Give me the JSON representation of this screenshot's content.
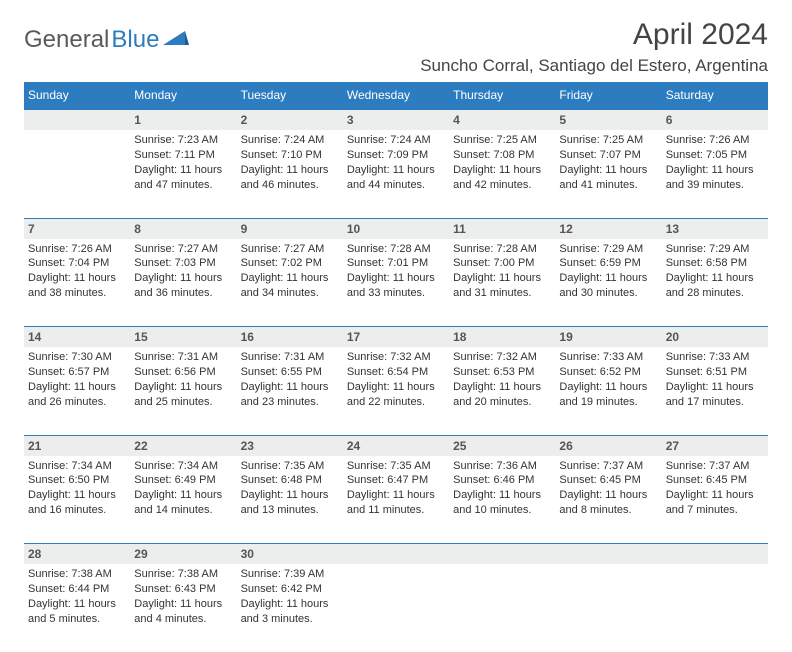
{
  "logo": {
    "text_gray": "General",
    "text_blue": "Blue"
  },
  "title": "April 2024",
  "location": "Suncho Corral, Santiago del Estero, Argentina",
  "colors": {
    "header_bg": "#2e7cc0",
    "header_text": "#ffffff",
    "daynum_bg": "#eceded",
    "divider": "#2e7cc0",
    "body_text": "#333333"
  },
  "weekdays": [
    "Sunday",
    "Monday",
    "Tuesday",
    "Wednesday",
    "Thursday",
    "Friday",
    "Saturday"
  ],
  "weeks": [
    {
      "nums": [
        "",
        "1",
        "2",
        "3",
        "4",
        "5",
        "6"
      ],
      "cells": [
        null,
        {
          "sr": "Sunrise: 7:23 AM",
          "ss": "Sunset: 7:11 PM",
          "d1": "Daylight: 11 hours",
          "d2": "and 47 minutes."
        },
        {
          "sr": "Sunrise: 7:24 AM",
          "ss": "Sunset: 7:10 PM",
          "d1": "Daylight: 11 hours",
          "d2": "and 46 minutes."
        },
        {
          "sr": "Sunrise: 7:24 AM",
          "ss": "Sunset: 7:09 PM",
          "d1": "Daylight: 11 hours",
          "d2": "and 44 minutes."
        },
        {
          "sr": "Sunrise: 7:25 AM",
          "ss": "Sunset: 7:08 PM",
          "d1": "Daylight: 11 hours",
          "d2": "and 42 minutes."
        },
        {
          "sr": "Sunrise: 7:25 AM",
          "ss": "Sunset: 7:07 PM",
          "d1": "Daylight: 11 hours",
          "d2": "and 41 minutes."
        },
        {
          "sr": "Sunrise: 7:26 AM",
          "ss": "Sunset: 7:05 PM",
          "d1": "Daylight: 11 hours",
          "d2": "and 39 minutes."
        }
      ]
    },
    {
      "nums": [
        "7",
        "8",
        "9",
        "10",
        "11",
        "12",
        "13"
      ],
      "cells": [
        {
          "sr": "Sunrise: 7:26 AM",
          "ss": "Sunset: 7:04 PM",
          "d1": "Daylight: 11 hours",
          "d2": "and 38 minutes."
        },
        {
          "sr": "Sunrise: 7:27 AM",
          "ss": "Sunset: 7:03 PM",
          "d1": "Daylight: 11 hours",
          "d2": "and 36 minutes."
        },
        {
          "sr": "Sunrise: 7:27 AM",
          "ss": "Sunset: 7:02 PM",
          "d1": "Daylight: 11 hours",
          "d2": "and 34 minutes."
        },
        {
          "sr": "Sunrise: 7:28 AM",
          "ss": "Sunset: 7:01 PM",
          "d1": "Daylight: 11 hours",
          "d2": "and 33 minutes."
        },
        {
          "sr": "Sunrise: 7:28 AM",
          "ss": "Sunset: 7:00 PM",
          "d1": "Daylight: 11 hours",
          "d2": "and 31 minutes."
        },
        {
          "sr": "Sunrise: 7:29 AM",
          "ss": "Sunset: 6:59 PM",
          "d1": "Daylight: 11 hours",
          "d2": "and 30 minutes."
        },
        {
          "sr": "Sunrise: 7:29 AM",
          "ss": "Sunset: 6:58 PM",
          "d1": "Daylight: 11 hours",
          "d2": "and 28 minutes."
        }
      ]
    },
    {
      "nums": [
        "14",
        "15",
        "16",
        "17",
        "18",
        "19",
        "20"
      ],
      "cells": [
        {
          "sr": "Sunrise: 7:30 AM",
          "ss": "Sunset: 6:57 PM",
          "d1": "Daylight: 11 hours",
          "d2": "and 26 minutes."
        },
        {
          "sr": "Sunrise: 7:31 AM",
          "ss": "Sunset: 6:56 PM",
          "d1": "Daylight: 11 hours",
          "d2": "and 25 minutes."
        },
        {
          "sr": "Sunrise: 7:31 AM",
          "ss": "Sunset: 6:55 PM",
          "d1": "Daylight: 11 hours",
          "d2": "and 23 minutes."
        },
        {
          "sr": "Sunrise: 7:32 AM",
          "ss": "Sunset: 6:54 PM",
          "d1": "Daylight: 11 hours",
          "d2": "and 22 minutes."
        },
        {
          "sr": "Sunrise: 7:32 AM",
          "ss": "Sunset: 6:53 PM",
          "d1": "Daylight: 11 hours",
          "d2": "and 20 minutes."
        },
        {
          "sr": "Sunrise: 7:33 AM",
          "ss": "Sunset: 6:52 PM",
          "d1": "Daylight: 11 hours",
          "d2": "and 19 minutes."
        },
        {
          "sr": "Sunrise: 7:33 AM",
          "ss": "Sunset: 6:51 PM",
          "d1": "Daylight: 11 hours",
          "d2": "and 17 minutes."
        }
      ]
    },
    {
      "nums": [
        "21",
        "22",
        "23",
        "24",
        "25",
        "26",
        "27"
      ],
      "cells": [
        {
          "sr": "Sunrise: 7:34 AM",
          "ss": "Sunset: 6:50 PM",
          "d1": "Daylight: 11 hours",
          "d2": "and 16 minutes."
        },
        {
          "sr": "Sunrise: 7:34 AM",
          "ss": "Sunset: 6:49 PM",
          "d1": "Daylight: 11 hours",
          "d2": "and 14 minutes."
        },
        {
          "sr": "Sunrise: 7:35 AM",
          "ss": "Sunset: 6:48 PM",
          "d1": "Daylight: 11 hours",
          "d2": "and 13 minutes."
        },
        {
          "sr": "Sunrise: 7:35 AM",
          "ss": "Sunset: 6:47 PM",
          "d1": "Daylight: 11 hours",
          "d2": "and 11 minutes."
        },
        {
          "sr": "Sunrise: 7:36 AM",
          "ss": "Sunset: 6:46 PM",
          "d1": "Daylight: 11 hours",
          "d2": "and 10 minutes."
        },
        {
          "sr": "Sunrise: 7:37 AM",
          "ss": "Sunset: 6:45 PM",
          "d1": "Daylight: 11 hours",
          "d2": "and 8 minutes."
        },
        {
          "sr": "Sunrise: 7:37 AM",
          "ss": "Sunset: 6:45 PM",
          "d1": "Daylight: 11 hours",
          "d2": "and 7 minutes."
        }
      ]
    },
    {
      "nums": [
        "28",
        "29",
        "30",
        "",
        "",
        "",
        ""
      ],
      "cells": [
        {
          "sr": "Sunrise: 7:38 AM",
          "ss": "Sunset: 6:44 PM",
          "d1": "Daylight: 11 hours",
          "d2": "and 5 minutes."
        },
        {
          "sr": "Sunrise: 7:38 AM",
          "ss": "Sunset: 6:43 PM",
          "d1": "Daylight: 11 hours",
          "d2": "and 4 minutes."
        },
        {
          "sr": "Sunrise: 7:39 AM",
          "ss": "Sunset: 6:42 PM",
          "d1": "Daylight: 11 hours",
          "d2": "and 3 minutes."
        },
        null,
        null,
        null,
        null
      ]
    }
  ]
}
